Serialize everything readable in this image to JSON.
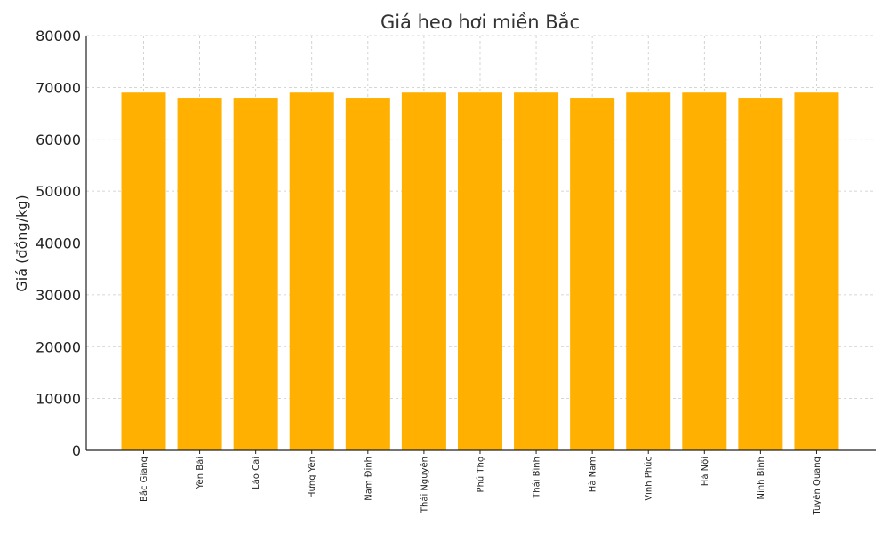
{
  "chart_data": {
    "type": "bar",
    "title": "Giá heo hơi miền Bắc",
    "xlabel": "",
    "ylabel": "Giá (đồng/kg)",
    "ylim": [
      0,
      80000
    ],
    "yticks": [
      "0",
      "10000",
      "20000",
      "30000",
      "40000",
      "50000",
      "60000",
      "70000",
      "80000"
    ],
    "grid": true,
    "bar_color": "#FFB000",
    "categories": [
      "Bắc Giang",
      "Yên Bái",
      "Lào Cai",
      "Hưng Yên",
      "Nam Định",
      "Thái Nguyên",
      "Phú Thọ",
      "Thái Bình",
      "Hà Nam",
      "Vĩnh Phúc",
      "Hà Nội",
      "Ninh Bình",
      "Tuyên Quang"
    ],
    "values": [
      69000,
      68000,
      68000,
      69000,
      68000,
      69000,
      69000,
      69000,
      68000,
      69000,
      69000,
      68000,
      69000
    ]
  }
}
